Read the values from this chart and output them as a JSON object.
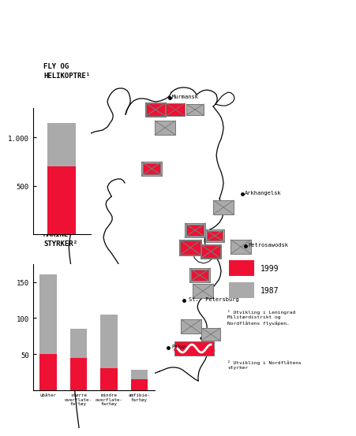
{
  "fly_title_line1": "FLY OG",
  "fly_title_line2": "HELIKOPTRE¹",
  "fly_red_1999": 700,
  "fly_gray_1987": 1150,
  "fly_yticks": [
    500,
    1000
  ],
  "fly_ylim": [
    0,
    1300
  ],
  "marine_title_line1": "MARINE-",
  "marine_title_line2": "STYRKER²",
  "marine_categories": [
    "ubåter",
    "større\noverflate-\nfartøy",
    "mindre\noverflate-\nfartøy",
    "amfibie-\nfartøy"
  ],
  "marine_red_1999": [
    50,
    45,
    30,
    15
  ],
  "marine_gray_1987": [
    160,
    85,
    105,
    28
  ],
  "marine_yticks": [
    50,
    100,
    150
  ],
  "marine_ylim": [
    0,
    175
  ],
  "legend_1999": "1999",
  "legend_1987": "1987",
  "red_color": "#EE1133",
  "gray_color": "#AAAAAA",
  "bg_color": "#FFFFFF",
  "footnote1": "¹ Utvikling i Leningrad\nMilitærdistrikt og\nNordflåtens flyvåpen.",
  "footnote2": "² Utvikling i Nordflåtens\nstyrker"
}
